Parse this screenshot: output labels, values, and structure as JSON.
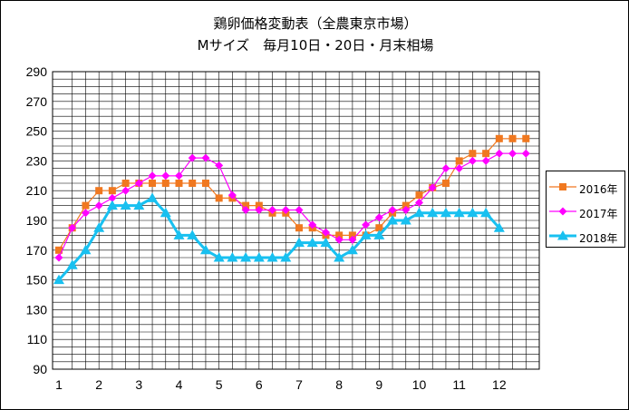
{
  "chart_data": {
    "type": "line",
    "title": "鶏卵価格変動表（全農東京市場）",
    "subtitle": "Mサイズ　毎月10日・20日・月末相場",
    "xlabel": "",
    "ylabel": "",
    "ylim": [
      90,
      290
    ],
    "ytick_step": 20,
    "xlim": [
      1,
      13
    ],
    "x_ticks": [
      "1",
      "2",
      "3",
      "4",
      "5",
      "6",
      "7",
      "8",
      "9",
      "10",
      "11",
      "12"
    ],
    "grid": true,
    "legend_position": "right",
    "series": [
      {
        "name": "2016年",
        "color": "#f07820",
        "marker": "square",
        "x": [
          1.0,
          1.333,
          1.667,
          2.0,
          2.333,
          2.667,
          3.0,
          3.333,
          3.667,
          4.0,
          4.333,
          4.667,
          5.0,
          5.333,
          5.667,
          6.0,
          6.333,
          6.667,
          7.0,
          7.333,
          7.667,
          8.0,
          8.333,
          8.667,
          9.0,
          9.333,
          9.667,
          10.0,
          10.333,
          10.667,
          11.0,
          11.333,
          11.667,
          12.0,
          12.333,
          12.667
        ],
        "values": [
          170,
          185,
          200,
          210,
          210,
          215,
          215,
          215,
          215,
          215,
          215,
          215,
          205,
          205,
          200,
          200,
          195,
          195,
          185,
          185,
          180,
          180,
          180,
          180,
          185,
          195,
          200,
          207,
          212,
          215,
          230,
          235,
          235,
          245,
          245,
          245
        ]
      },
      {
        "name": "2017年",
        "color": "#ff00ff",
        "marker": "diamond",
        "x": [
          1.0,
          1.333,
          1.667,
          2.0,
          2.333,
          2.667,
          3.0,
          3.333,
          3.667,
          4.0,
          4.333,
          4.667,
          5.0,
          5.333,
          5.667,
          6.0,
          6.333,
          6.667,
          7.0,
          7.333,
          7.667,
          8.0,
          8.333,
          8.667,
          9.0,
          9.333,
          9.667,
          10.0,
          10.333,
          10.667,
          11.0,
          11.333,
          11.667,
          12.0,
          12.333,
          12.667
        ],
        "values": [
          165,
          185,
          195,
          200,
          205,
          210,
          215,
          220,
          220,
          220,
          232,
          232,
          227,
          207,
          197,
          197,
          197,
          197,
          197,
          187,
          182,
          177,
          177,
          187,
          192,
          197,
          197,
          202,
          212,
          225,
          225,
          230,
          230,
          235,
          235,
          235
        ]
      },
      {
        "name": "2018年",
        "color": "#18c0f0",
        "marker": "triangle",
        "x": [
          1.0,
          1.333,
          1.667,
          2.0,
          2.333,
          2.667,
          3.0,
          3.333,
          3.667,
          4.0,
          4.333,
          4.667,
          5.0,
          5.333,
          5.667,
          6.0,
          6.333,
          6.667,
          7.0,
          7.333,
          7.667,
          8.0,
          8.333,
          8.667,
          9.0,
          9.333,
          9.667,
          10.0,
          10.333,
          10.667,
          11.0,
          11.333,
          11.667,
          12.0
        ],
        "values": [
          150,
          160,
          170,
          185,
          200,
          200,
          200,
          205,
          195,
          180,
          180,
          170,
          165,
          165,
          165,
          165,
          165,
          165,
          175,
          175,
          175,
          165,
          170,
          180,
          180,
          190,
          190,
          195,
          195,
          195,
          195,
          195,
          195,
          185
        ]
      }
    ]
  }
}
